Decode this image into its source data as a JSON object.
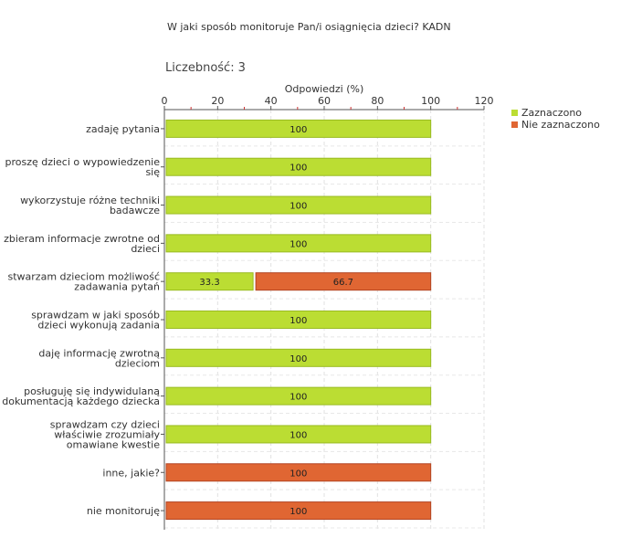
{
  "chart_data": {
    "type": "bar",
    "orientation": "horizontal",
    "stacked": true,
    "title": "W jaki sposób monitoruje Pan/i osiągnięcia dzieci?  KADN",
    "count_label": "Liczebność:",
    "count_value": "3",
    "xlabel": "Odpowiedzi (%)",
    "xlim": [
      0,
      120
    ],
    "xticks": [
      0,
      20,
      40,
      60,
      80,
      100,
      120
    ],
    "grid": true,
    "legend_position": "top-right",
    "categories": [
      [
        "zadaję pytania"
      ],
      [
        "proszę dzieci o wypowiedzenie",
        "się"
      ],
      [
        "wykorzystuje różne techniki",
        "badawcze"
      ],
      [
        "zbieram informacje zwrotne od",
        "dzieci"
      ],
      [
        "stwarzam dzieciom możliwość",
        "zadawania pytań"
      ],
      [
        "sprawdzam w jaki sposób",
        "dzieci wykonują zadania"
      ],
      [
        "daję informację zwrotną",
        "dzieciom"
      ],
      [
        "posługuję się indywidulaną",
        "dokumentacją każdego dziecka"
      ],
      [
        "sprawdzam czy dzieci",
        "właściwie zrozumiały",
        "omawiane kwestie"
      ],
      [
        "inne, jakie?"
      ],
      [
        "nie monitoruję"
      ]
    ],
    "series": [
      {
        "name": "Zaznaczono",
        "color": "#bbdd33",
        "values": [
          100,
          100,
          100,
          100,
          33.3,
          100,
          100,
          100,
          100,
          0,
          0
        ]
      },
      {
        "name": "Nie zaznaczono",
        "color": "#e06633",
        "values": [
          0,
          0,
          0,
          0,
          66.7,
          0,
          0,
          0,
          0,
          100,
          100
        ]
      }
    ]
  }
}
